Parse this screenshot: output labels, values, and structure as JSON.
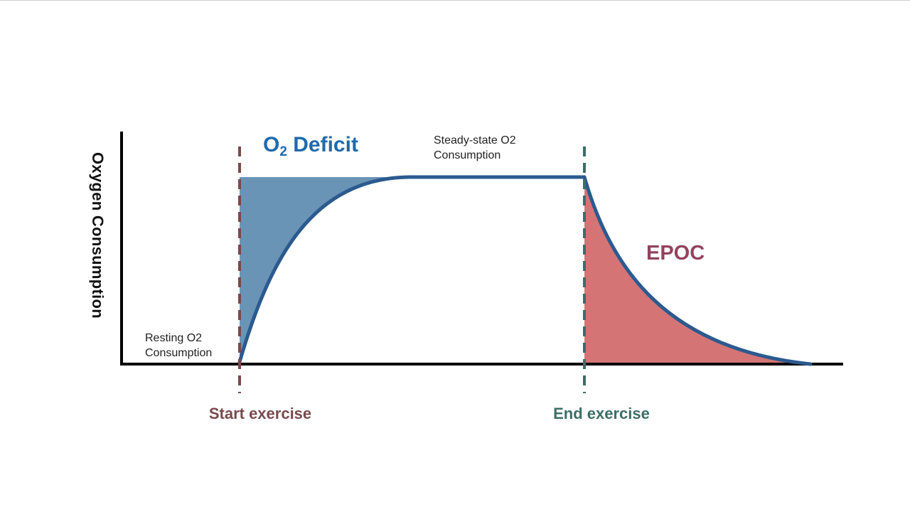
{
  "y_axis_label": "Oxygen Consumption",
  "deficit_label": {
    "main": "O",
    "sub": "2",
    "rest": " Deficit"
  },
  "epoc_label": "EPOC",
  "steady_state_note": {
    "line1": "Steady-state O2",
    "line2": "Consumption"
  },
  "resting_note": {
    "line1": "Resting O2",
    "line2": "Consumption"
  },
  "start_label": "Start exercise",
  "end_label": "End exercise",
  "colors": {
    "axis": "#000000",
    "curve": "#2b5a8f",
    "deficit_fill": "#6a94b6",
    "deficit_text": "#1f6aad",
    "epoc_fill": "#d57474",
    "epoc_text": "#93435e",
    "start_line": "#7a4a4c",
    "end_line": "#3c6e66"
  }
}
